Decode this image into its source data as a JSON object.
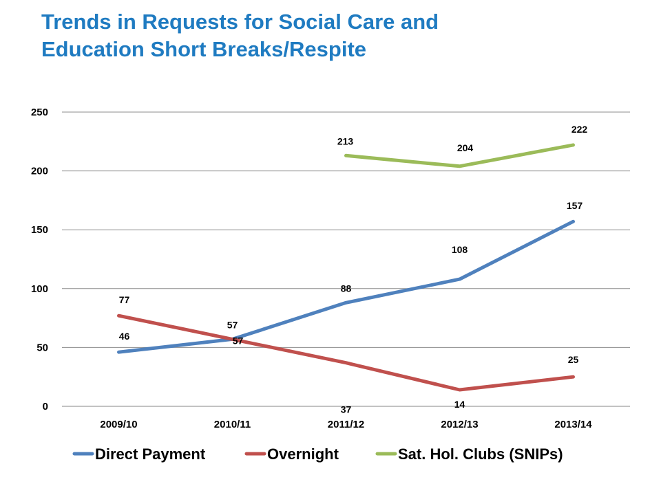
{
  "title": {
    "line1": "Trends in Requests for Social Care and",
    "line2": "Education Short Breaks/Respite"
  },
  "chart_data": {
    "type": "line",
    "title": "Trends in Requests for Social Care and Education Short Breaks/Respite",
    "categories": [
      "2009/10",
      "2010/11",
      "2011/12",
      "2012/13",
      "2013/14"
    ],
    "ylim": [
      0,
      250
    ],
    "yticks": [
      0,
      50,
      100,
      150,
      200,
      250
    ],
    "grid": true,
    "legend_position": "bottom",
    "series": [
      {
        "name": "Direct Payment",
        "color": "#4f81bd",
        "values": [
          46,
          57,
          88,
          108,
          157
        ]
      },
      {
        "name": "Overnight",
        "color": "#c0504d",
        "values": [
          77,
          57,
          37,
          14,
          25
        ]
      },
      {
        "name": "Sat. Hol. Clubs (SNIPs)",
        "color": "#9bbb59",
        "values": [
          null,
          null,
          213,
          204,
          222
        ]
      }
    ]
  }
}
